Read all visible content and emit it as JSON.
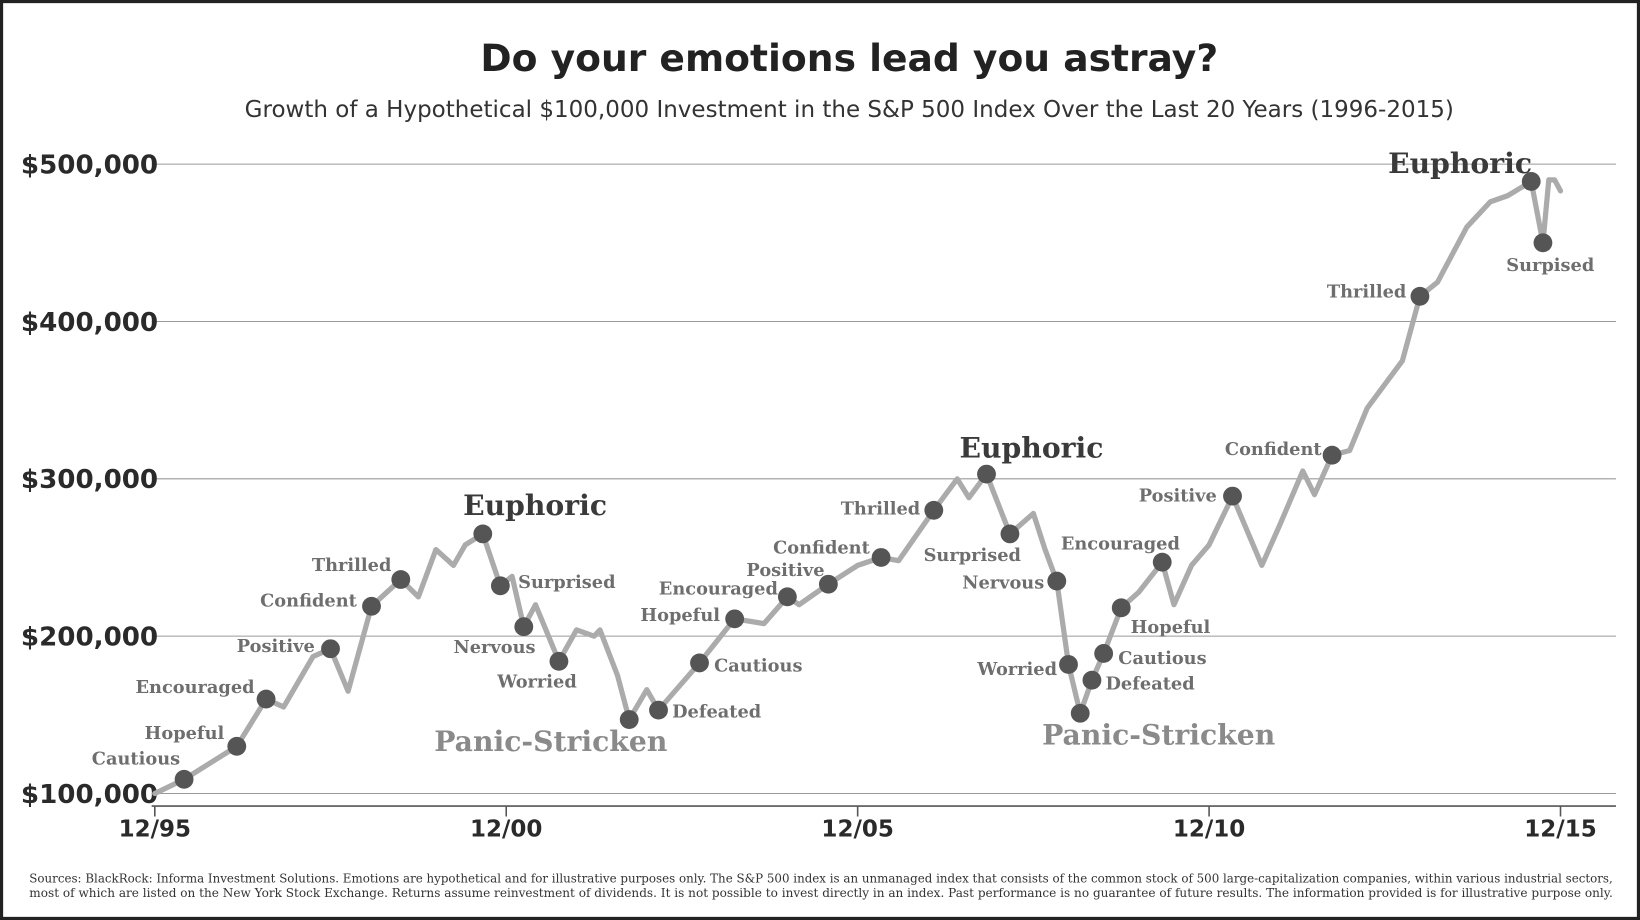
{
  "chart_data": {
    "type": "line",
    "title": "Do your emotions lead you astray?",
    "subtitle": "Growth of a Hypothetical $100,000 Investment in the S&P 500 Index Over the Last 20 Years (1996-2015)",
    "notes": [
      "Sources: BlackRock: Informa Investment Solutions. Emotions are hypothetical and for illustrative purposes only. The S&P 500 index is an unmanaged index that consists of the common stock of 500 large-capitalization companies, within various industrial sectors,",
      "most of which are listed on the New York Stock Exchange. Returns assume reinvestment of dividends. It is not possible to invest directly in an index. Past performance is no guarantee of future results. The information provided is for illustrative purpose only."
    ],
    "xlim": [
      "12/95",
      "12/15"
    ],
    "xticks": [
      "12/95",
      "12/00",
      "12/05",
      "12/10",
      "12/15"
    ],
    "ylim": [
      100000,
      500000
    ],
    "yticks": [
      {
        "value": 100000,
        "label": "$100,000"
      },
      {
        "value": 200000,
        "label": "$200,000"
      },
      {
        "value": 300000,
        "label": "$300,000"
      },
      {
        "value": 400000,
        "label": "$400,000"
      },
      {
        "value": 500000,
        "label": "$500,000"
      }
    ],
    "grid": true,
    "series": [
      {
        "color": "#ababab",
        "x": [
          "12/95",
          "05/96",
          "02/97",
          "07/97",
          "10/97",
          "03/98",
          "06/98",
          "09/98",
          "01/99",
          "06/99",
          "09/99",
          "12/99",
          "03/00",
          "05/00",
          "08/00",
          "11/00",
          "01/01",
          "03/01",
          "05/01",
          "09/01",
          "12/01",
          "03/02",
          "04/02",
          "07/02",
          "09/02",
          "12/02",
          "02/03",
          "09/03",
          "03/04",
          "08/04",
          "12/04",
          "02/05",
          "07/05",
          "12/05",
          "04/06",
          "07/06",
          "01/07",
          "05/07",
          "07/07",
          "10/07",
          "02/08",
          "06/08",
          "08/08",
          "10/08",
          "12/08",
          "02/09",
          "04/09",
          "06/09",
          "09/09",
          "12/09",
          "04/10",
          "06/10",
          "09/10",
          "12/10",
          "04/11",
          "09/11",
          "12/11",
          "04/12",
          "06/12",
          "09/12",
          "12/12",
          "03/13",
          "09/13",
          "12/13",
          "03/14",
          "08/14",
          "12/14",
          "03/15",
          "07/15",
          "09/15",
          "10/15",
          "11/15",
          "12/15"
        ],
        "values": [
          100000,
          109000,
          130000,
          160000,
          155000,
          187000,
          192000,
          165000,
          219000,
          236000,
          225000,
          255000,
          245000,
          258000,
          265000,
          232000,
          238000,
          206000,
          220000,
          184000,
          204000,
          200000,
          204000,
          175000,
          147000,
          166000,
          153000,
          183000,
          211000,
          208000,
          225000,
          220000,
          233000,
          245000,
          250000,
          248000,
          280000,
          300000,
          288000,
          303000,
          265000,
          278000,
          255000,
          235000,
          182000,
          151000,
          172000,
          189000,
          218000,
          228000,
          247000,
          220000,
          245000,
          258000,
          289000,
          245000,
          270000,
          305000,
          290000,
          315000,
          318000,
          345000,
          375000,
          416000,
          425000,
          460000,
          476000,
          480000,
          489000,
          450000,
          490000,
          490000,
          483000
        ]
      }
    ],
    "marker_color": "#555555",
    "annotations": [
      {
        "label": "Cautious",
        "x": "05/96",
        "value": 109000
      },
      {
        "label": "Hopeful",
        "x": "02/97",
        "value": 130000
      },
      {
        "label": "Encouraged",
        "x": "07/97",
        "value": 160000
      },
      {
        "label": "Positive",
        "x": "06/98",
        "value": 192000
      },
      {
        "label": "Confident",
        "x": "01/99",
        "value": 219000
      },
      {
        "label": "Thrilled",
        "x": "06/99",
        "value": 236000
      },
      {
        "label": "Euphoric",
        "x": "08/00",
        "value": 265000
      },
      {
        "label": "Surprised",
        "x": "11/00",
        "value": 232000
      },
      {
        "label": "Nervous",
        "x": "03/01",
        "value": 206000
      },
      {
        "label": "Worried",
        "x": "09/01",
        "value": 184000
      },
      {
        "label": "Panic-Stricken",
        "x": "09/02",
        "value": 147000
      },
      {
        "label": "Defeated",
        "x": "02/03",
        "value": 153000
      },
      {
        "label": "Cautious",
        "x": "09/03",
        "value": 183000
      },
      {
        "label": "Hopeful",
        "x": "03/04",
        "value": 211000
      },
      {
        "label": "Encouraged",
        "x": "12/04",
        "value": 225000
      },
      {
        "label": "Positive",
        "x": "07/05",
        "value": 233000
      },
      {
        "label": "Confident",
        "x": "04/06",
        "value": 250000
      },
      {
        "label": "Thrilled",
        "x": "01/07",
        "value": 280000
      },
      {
        "label": "Euphoric",
        "x": "10/07",
        "value": 303000
      },
      {
        "label": "Surprised",
        "x": "02/08",
        "value": 265000
      },
      {
        "label": "Nervous",
        "x": "10/08",
        "value": 235000
      },
      {
        "label": "Worried",
        "x": "12/08",
        "value": 182000
      },
      {
        "label": "Panic-Stricken",
        "x": "02/09",
        "value": 151000
      },
      {
        "label": "Defeated",
        "x": "04/09",
        "value": 172000
      },
      {
        "label": "Cautious",
        "x": "06/09",
        "value": 189000
      },
      {
        "label": "Hopeful",
        "x": "09/09",
        "value": 218000
      },
      {
        "label": "Encouraged",
        "x": "04/10",
        "value": 247000
      },
      {
        "label": "Positive",
        "x": "04/11",
        "value": 289000
      },
      {
        "label": "Confident",
        "x": "09/12",
        "value": 315000
      },
      {
        "label": "Thrilled",
        "x": "12/13",
        "value": 416000
      },
      {
        "label": "Euphoric",
        "x": "07/15",
        "value": 489000
      },
      {
        "label": "Surpised",
        "x": "09/15",
        "value": 450000
      }
    ]
  }
}
